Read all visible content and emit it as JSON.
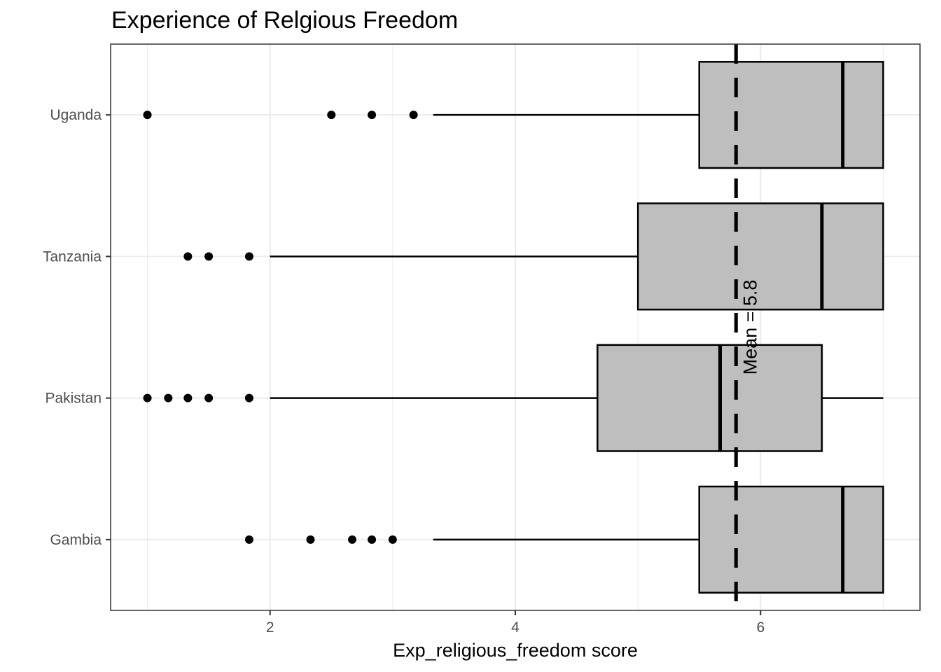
{
  "chart_data": {
    "type": "boxplot",
    "orientation": "horizontal",
    "title": "Experience of Relgious Freedom",
    "xlabel": "Exp_religious_freedom score",
    "ylabel": "",
    "xlim": [
      0.7,
      7.3
    ],
    "x_ticks": [
      2,
      4,
      6
    ],
    "grid": true,
    "categories": [
      "Gambia",
      "Pakistan",
      "Tanzania",
      "Uganda"
    ],
    "boxes": [
      {
        "category": "Gambia",
        "whisker_low": 3.33,
        "q1": 5.5,
        "median": 6.67,
        "q3": 7.0,
        "whisker_high": 7.0,
        "outliers": [
          1.83,
          2.33,
          2.67,
          2.83,
          3.0
        ]
      },
      {
        "category": "Pakistan",
        "whisker_low": 2.0,
        "q1": 4.67,
        "median": 5.67,
        "q3": 6.5,
        "whisker_high": 7.0,
        "outliers": [
          1.0,
          1.17,
          1.33,
          1.5,
          1.83
        ]
      },
      {
        "category": "Tanzania",
        "whisker_low": 2.0,
        "q1": 5.0,
        "median": 6.5,
        "q3": 7.0,
        "whisker_high": 7.0,
        "outliers": [
          1.33,
          1.5,
          1.83
        ]
      },
      {
        "category": "Uganda",
        "whisker_low": 3.33,
        "q1": 5.5,
        "median": 6.67,
        "q3": 7.0,
        "whisker_high": 7.0,
        "outliers": [
          1.0,
          2.5,
          2.83,
          3.17
        ]
      }
    ],
    "reference_line": {
      "value": 5.8,
      "style": "dashed",
      "label": "Mean = 5.8"
    },
    "colors": {
      "box_fill": "#bebebe",
      "box_stroke": "#000000",
      "grid": "#ebebeb",
      "panel_border": "#333333"
    }
  }
}
